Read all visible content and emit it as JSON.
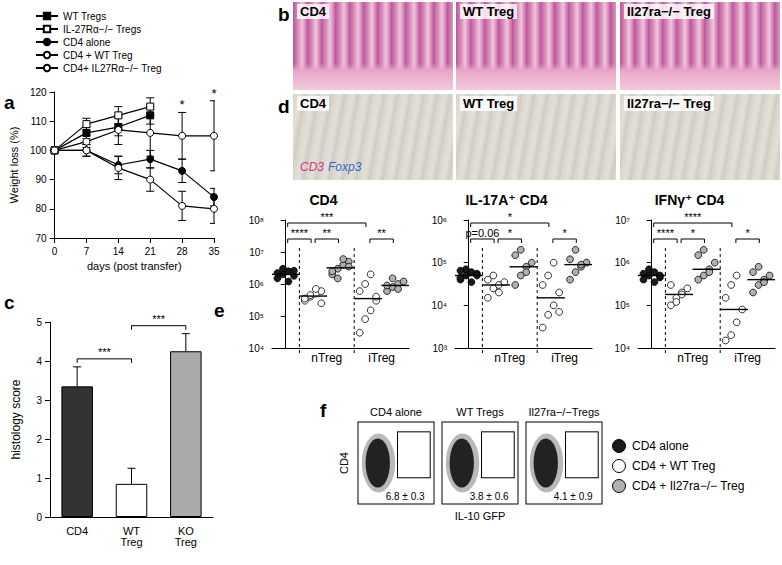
{
  "chart_data": [
    {
      "panel": "a",
      "type": "line",
      "x_label": "days (post transfer)",
      "y_label": "Weight loss (%)",
      "xlim": [
        0,
        35
      ],
      "xticks": [
        0,
        7,
        14,
        21,
        28,
        35
      ],
      "ylim": [
        70,
        120
      ],
      "yticks": [
        70,
        80,
        90,
        100,
        110,
        120
      ],
      "grid": false,
      "legend": "upper left",
      "series": [
        {
          "name": "WT Tregs",
          "marker": "square",
          "color": "#000000",
          "x": [
            0,
            7,
            14,
            21
          ],
          "values": [
            100,
            106,
            108,
            112
          ],
          "errors": [
            0,
            2,
            3,
            3
          ]
        },
        {
          "name": "IL-27Rα−/− Tregs",
          "marker": "square",
          "color": "#ffffff",
          "x": [
            0,
            7,
            14,
            21
          ],
          "values": [
            100,
            109,
            112,
            115
          ],
          "errors": [
            0,
            2,
            3,
            3
          ]
        },
        {
          "name": "CD4 alone",
          "marker": "circle",
          "color": "#000000",
          "x": [
            0,
            7,
            14,
            21,
            28,
            35
          ],
          "values": [
            100,
            100,
            95,
            97,
            93,
            84
          ],
          "errors": [
            0,
            2,
            3,
            3,
            4,
            3
          ]
        },
        {
          "name": "CD4 + WT Treg",
          "marker": "circle",
          "color": "#ffffff",
          "x": [
            0,
            7,
            14,
            21,
            28,
            35
          ],
          "values": [
            100,
            103,
            107,
            106,
            105,
            105
          ],
          "errors": [
            0,
            2,
            5,
            8,
            8,
            12
          ]
        },
        {
          "name": "CD4+ IL27Rα−/− Treg",
          "marker": "circle",
          "color": "#ffffff",
          "x": [
            0,
            7,
            14,
            21,
            28,
            35
          ],
          "values": [
            100,
            100,
            94,
            90,
            81,
            80
          ],
          "errors": [
            0,
            2,
            4,
            4,
            5,
            5
          ]
        }
      ],
      "annotations": [
        {
          "x": 28,
          "label": "*"
        },
        {
          "x": 35,
          "label": "*"
        }
      ]
    },
    {
      "panel": "c",
      "type": "bar",
      "y_label": "histology score",
      "categories": [
        "CD4",
        "WT\nTreg",
        "KO\nTreg"
      ],
      "values": [
        3.35,
        0.85,
        4.25
      ],
      "errors": [
        0.5,
        0.4,
        0.45
      ],
      "colors": [
        "#333333",
        "#ffffff",
        "#aaaaaa"
      ],
      "ylim": [
        0,
        5
      ],
      "yticks": [
        0,
        1,
        2,
        3,
        4,
        5
      ],
      "grid": false,
      "brackets": [
        {
          "from": 0,
          "to": 1,
          "label": "***"
        },
        {
          "from": 1,
          "to": 2,
          "label": "***"
        }
      ]
    },
    {
      "panel": "e",
      "type": "scatter",
      "title": "CD4",
      "log": "y",
      "ylim": [
        10000,
        100000000
      ],
      "yticks": [
        {
          "value": 10000,
          "label": "10⁴"
        },
        {
          "value": 100000,
          "label": "10⁵"
        },
        {
          "value": 1000000,
          "label": "10⁶"
        },
        {
          "value": 10000000,
          "label": "10⁷"
        },
        {
          "value": 100000000,
          "label": "10⁸"
        }
      ],
      "grid": false,
      "series": [
        {
          "name": "CD4 alone",
          "group": null,
          "color": "#1a1a1a",
          "values": [
            1500000,
            2000000,
            2500000,
            1800000,
            2200000,
            3000000,
            1200000,
            2600000
          ],
          "median": 2000000
        },
        {
          "name": "CD4 + WT Treg",
          "group": "nTreg",
          "color": "#ffffff",
          "values": [
            300000,
            400000,
            500000,
            600000,
            350000,
            450000,
            700000,
            250000
          ],
          "median": 420000
        },
        {
          "name": "CD4 + Il27ra−/− Treg",
          "group": "nTreg",
          "color": "#b0b0b0",
          "values": [
            2000000,
            3000000,
            4000000,
            5000000,
            2500000,
            1500000,
            6000000,
            3500000
          ],
          "median": 3200000
        },
        {
          "name": "CD4 + WT Treg",
          "group": "iTreg",
          "color": "#ffffff",
          "values": [
            30000,
            80000,
            150000,
            300000,
            600000,
            1000000,
            2000000,
            400000
          ],
          "median": 350000
        },
        {
          "name": "CD4 + Il27ra−/− Treg",
          "group": "iTreg",
          "color": "#b0b0b0",
          "values": [
            600000,
            800000,
            1000000,
            1200000,
            900000,
            1500000,
            700000
          ],
          "median": 900000
        }
      ],
      "brackets": [
        {
          "from": 0,
          "to": 3,
          "label": "***"
        },
        {
          "from": 0,
          "to": 1,
          "label": "****"
        },
        {
          "from": 1,
          "to": 2,
          "label": "**"
        },
        {
          "from": 3,
          "to": 4,
          "label": "**"
        }
      ]
    },
    {
      "type": "scatter",
      "title": "IL-17A⁺ CD4",
      "log": "y",
      "ylim": [
        1000,
        1000000
      ],
      "yticks": [
        {
          "value": 1000,
          "label": "10³"
        },
        {
          "value": 10000,
          "label": "10⁴"
        },
        {
          "value": 100000,
          "label": "10⁵"
        },
        {
          "value": 1000000,
          "label": "10⁶"
        }
      ],
      "grid": false,
      "series": [
        {
          "name": "CD4 alone",
          "group": null,
          "color": "#1a1a1a",
          "values": [
            40000,
            50000,
            60000,
            55000,
            45000,
            70000,
            35000,
            50000,
            65000
          ],
          "median": 50000
        },
        {
          "name": "CD4 + WT Treg",
          "group": "nTreg",
          "color": "#ffffff",
          "values": [
            15000,
            25000,
            30000,
            35000,
            40000,
            50000,
            20000
          ],
          "median": 30000
        },
        {
          "name": "CD4 + Il27ra−/− Treg",
          "group": "nTreg",
          "color": "#b0b0b0",
          "values": [
            30000,
            50000,
            80000,
            100000,
            150000,
            200000,
            60000
          ],
          "median": 80000
        },
        {
          "name": "CD4 + WT Treg",
          "group": "iTreg",
          "color": "#ffffff",
          "values": [
            3000,
            6000,
            10000,
            20000,
            30000,
            50000,
            100000,
            7000
          ],
          "median": 15000
        },
        {
          "name": "CD4 + Il27ra−/− Treg",
          "group": "iTreg",
          "color": "#b0b0b0",
          "values": [
            40000,
            60000,
            80000,
            100000,
            120000,
            200000,
            90000
          ],
          "median": 90000
        }
      ],
      "brackets": [
        {
          "from": 0,
          "to": 3,
          "label": "*"
        },
        {
          "from": 0,
          "to": 1,
          "label": "p=0.06"
        },
        {
          "from": 1,
          "to": 2,
          "label": "*"
        },
        {
          "from": 3,
          "to": 4,
          "label": "*"
        }
      ]
    },
    {
      "type": "scatter",
      "title": "IFNγ⁺ CD4",
      "log": "y",
      "ylim": [
        10000,
        10000000
      ],
      "yticks": [
        {
          "value": 10000,
          "label": "10⁴"
        },
        {
          "value": 100000,
          "label": "10⁵"
        },
        {
          "value": 1000000,
          "label": "10⁶"
        },
        {
          "value": 10000000,
          "label": "10⁷"
        }
      ],
      "grid": false,
      "series": [
        {
          "name": "CD4 alone",
          "group": null,
          "color": "#1a1a1a",
          "values": [
            400000,
            500000,
            600000,
            450000,
            550000,
            700000,
            350000,
            500000
          ],
          "median": 500000
        },
        {
          "name": "CD4 + WT Treg",
          "group": "nTreg",
          "color": "#ffffff",
          "values": [
            100000,
            150000,
            200000,
            250000,
            300000,
            120000,
            180000
          ],
          "median": 180000
        },
        {
          "name": "CD4 + Il27ra−/− Treg",
          "group": "nTreg",
          "color": "#b0b0b0",
          "values": [
            400000,
            500000,
            700000,
            1000000,
            1500000,
            2000000,
            600000
          ],
          "median": 700000
        },
        {
          "name": "CD4 + WT Treg",
          "group": "iTreg",
          "color": "#ffffff",
          "values": [
            15000,
            20000,
            40000,
            80000,
            150000,
            300000,
            500000
          ],
          "median": 80000
        },
        {
          "name": "CD4 + Il27ra−/− Treg",
          "group": "iTreg",
          "color": "#b0b0b0",
          "values": [
            200000,
            300000,
            400000,
            500000,
            600000,
            800000,
            350000
          ],
          "median": 400000
        }
      ],
      "brackets": [
        {
          "from": 0,
          "to": 3,
          "label": "****"
        },
        {
          "from": 0,
          "to": 1,
          "label": "****"
        },
        {
          "from": 1,
          "to": 2,
          "label": "*"
        },
        {
          "from": 3,
          "to": 4,
          "label": "*"
        }
      ]
    }
  ],
  "panels": {
    "b": {
      "panel": "b",
      "images": [
        "CD4",
        "WT Treg",
        "Il27ra−/− Treg"
      ]
    },
    "d": {
      "panel": "d",
      "images": [
        "CD4",
        "WT Treg",
        "Il27ra−/− Treg"
      ],
      "stain": [
        "CD3",
        "Foxp3"
      ]
    },
    "f": {
      "panel": "f",
      "x_label": "IL-10 GFP",
      "y_label": "CD4",
      "plots": [
        {
          "title": "CD4 alone",
          "gate": "6.8 ± 0.3"
        },
        {
          "title": "WT Tregs",
          "gate": "3.8 ± 0.6"
        },
        {
          "title": "Il27ra−/−Tregs",
          "gate": "4.1 ± 0.9"
        }
      ]
    }
  }
}
